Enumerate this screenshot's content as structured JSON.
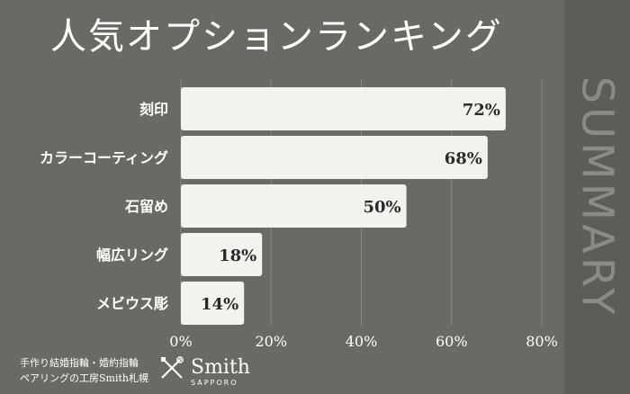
{
  "chart_data": {
    "type": "bar",
    "orientation": "horizontal",
    "title": "人気オプションランキング",
    "categories": [
      "刻印",
      "カラーコーティング",
      "石留め",
      "幅広リング",
      "メビウス彫"
    ],
    "values": [
      72,
      68,
      50,
      18,
      14
    ],
    "value_labels": [
      "72%",
      "68%",
      "50%",
      "18%",
      "14%"
    ],
    "xlim": [
      0,
      80
    ],
    "x_ticks": [
      0,
      20,
      40,
      60,
      80
    ],
    "x_tick_labels": [
      "0%",
      "20%",
      "40%",
      "60%",
      "80%"
    ],
    "grid": true,
    "bar_color": "#f4f2ef",
    "background_color": "#6b6964"
  },
  "side_label": "SUMMARY",
  "footer": {
    "line1": "手作り結婚指輪・婚約指輪",
    "line2": "ペアリングの工房Smith札幌",
    "brand_name": "Smith",
    "brand_sub": "SAPPORO"
  }
}
